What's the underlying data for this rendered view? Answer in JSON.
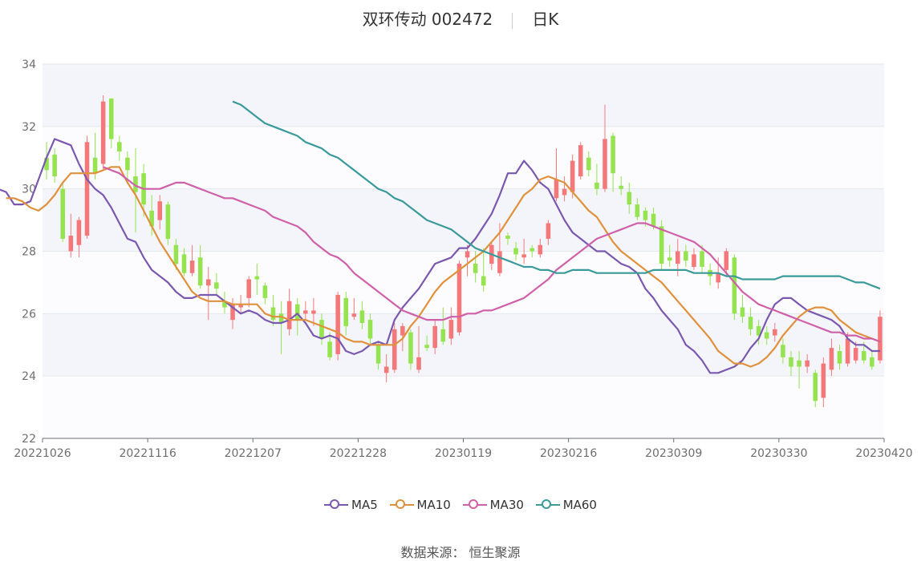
{
  "title": "双环传动 002472",
  "subtitle": "日K",
  "legend": [
    {
      "name": "MA5",
      "color": "#7b58b0"
    },
    {
      "name": "MA10",
      "color": "#e0913e"
    },
    {
      "name": "MA30",
      "color": "#d060a8"
    },
    {
      "name": "MA60",
      "color": "#3a9a9a"
    }
  ],
  "source_label": "数据来源： 恒生聚源",
  "chart_data": {
    "type": "candlestick",
    "title": "双环传动 002472 日K",
    "ylim": [
      22,
      34
    ],
    "yticks": [
      22,
      24,
      26,
      28,
      30,
      32,
      34
    ],
    "xticks": [
      "20221026",
      "20221116",
      "20221207",
      "20221228",
      "20230119",
      "20230216",
      "20230309",
      "20230330",
      "20230420"
    ],
    "up_color": "#f4787a",
    "down_color": "#94e34f",
    "series": [
      {
        "name": "MA5",
        "values": [
          29.6,
          30.0,
          30.0,
          29.9,
          29.5,
          29.5,
          29.6,
          30.3,
          31.0,
          31.6,
          31.5,
          31.4,
          30.8,
          30.3,
          30.0,
          29.8,
          29.4,
          28.9,
          28.4,
          28.3,
          27.8,
          27.4,
          27.2,
          27.0,
          26.7,
          26.5,
          26.5,
          26.6,
          26.6,
          26.6,
          26.4,
          26.2,
          26.0,
          26.1,
          26.0,
          25.8,
          25.7,
          25.7,
          25.8,
          26.0,
          25.7,
          25.3,
          25.2,
          25.3,
          25.2,
          24.8,
          24.7,
          24.8,
          25.0,
          25.1,
          25.0,
          25.8,
          26.2,
          26.5,
          26.8,
          27.2,
          27.6,
          27.7,
          27.8,
          28.1,
          28.1,
          28.4,
          28.8,
          29.2,
          29.8,
          30.5,
          30.5,
          30.9,
          30.6,
          30.2,
          30.0,
          29.5,
          29.0,
          28.6,
          28.4,
          28.2,
          28.0,
          28.0,
          27.8,
          27.6,
          27.5,
          27.3,
          26.8,
          26.5,
          26.1,
          25.8,
          25.5,
          25.0,
          24.8,
          24.5,
          24.1,
          24.1,
          24.2,
          24.3,
          24.5,
          24.9,
          25.2,
          25.8,
          26.3,
          26.5,
          26.5,
          26.3,
          26.1,
          26.0,
          25.9,
          25.8,
          25.6,
          25.2,
          25.0,
          25.0,
          24.8,
          24.8
        ]
      },
      {
        "name": "MA10",
        "values": [
          29.7,
          29.7,
          29.6,
          29.4,
          29.3,
          29.5,
          29.8,
          30.2,
          30.5,
          30.5,
          30.5,
          30.5,
          30.6,
          30.7,
          30.7,
          30.2,
          29.8,
          29.3,
          28.8,
          28.3,
          27.9,
          27.5,
          27.1,
          26.7,
          26.5,
          26.4,
          26.4,
          26.4,
          26.3,
          26.3,
          26.3,
          26.3,
          26.0,
          25.9,
          25.9,
          25.8,
          25.8,
          25.8,
          25.7,
          25.6,
          25.5,
          25.4,
          25.2,
          25.1,
          25.1,
          25.0,
          25.0,
          25.0,
          25.0,
          25.2,
          25.6,
          25.9,
          26.3,
          26.7,
          27.0,
          27.2,
          27.4,
          27.6,
          27.8,
          28.0,
          28.3,
          28.6,
          29.0,
          29.4,
          29.8,
          30.0,
          30.3,
          30.4,
          30.3,
          30.2,
          29.9,
          29.6,
          29.3,
          29.1,
          28.7,
          28.3,
          28.0,
          27.8,
          27.6,
          27.4,
          27.2,
          27.0,
          26.7,
          26.4,
          26.1,
          25.8,
          25.5,
          25.2,
          24.8,
          24.6,
          24.4,
          24.4,
          24.3,
          24.4,
          24.6,
          24.9,
          25.3,
          25.6,
          25.9,
          26.1,
          26.2,
          26.2,
          26.1,
          25.8,
          25.6,
          25.4,
          25.3,
          25.2,
          25.1
        ]
      },
      {
        "name": "MA30",
        "values": [
          30.7,
          30.6,
          30.5,
          30.3,
          30.1,
          30.0,
          30.0,
          30.0,
          30.1,
          30.2,
          30.2,
          30.1,
          30.0,
          29.9,
          29.8,
          29.7,
          29.7,
          29.6,
          29.5,
          29.4,
          29.3,
          29.1,
          29.0,
          28.9,
          28.8,
          28.6,
          28.3,
          28.1,
          27.9,
          27.8,
          27.6,
          27.3,
          27.1,
          26.9,
          26.7,
          26.5,
          26.3,
          26.1,
          26.0,
          25.9,
          25.8,
          25.8,
          25.8,
          25.9,
          25.9,
          26.0,
          26.0,
          26.1,
          26.1,
          26.2,
          26.3,
          26.4,
          26.5,
          26.7,
          26.9,
          27.1,
          27.4,
          27.6,
          27.8,
          28.0,
          28.2,
          28.4,
          28.5,
          28.6,
          28.7,
          28.8,
          28.9,
          28.9,
          28.8,
          28.7,
          28.6,
          28.5,
          28.4,
          28.3,
          28.1,
          27.9,
          27.6,
          27.3,
          27.0,
          26.7,
          26.5,
          26.3,
          26.2,
          26.1,
          26.0,
          25.9,
          25.8,
          25.7,
          25.6,
          25.5,
          25.4,
          25.4,
          25.3,
          25.3,
          25.2,
          25.2,
          25.1
        ]
      },
      {
        "name": "MA60",
        "values": [
          32.8,
          32.7,
          32.5,
          32.3,
          32.1,
          32.0,
          31.9,
          31.8,
          31.7,
          31.5,
          31.4,
          31.3,
          31.1,
          31.0,
          30.8,
          30.6,
          30.4,
          30.2,
          30.0,
          29.9,
          29.7,
          29.6,
          29.4,
          29.2,
          29.0,
          28.9,
          28.8,
          28.7,
          28.5,
          28.3,
          28.1,
          28.0,
          27.9,
          27.8,
          27.7,
          27.6,
          27.5,
          27.5,
          27.4,
          27.4,
          27.3,
          27.3,
          27.4,
          27.4,
          27.4,
          27.3,
          27.3,
          27.3,
          27.3,
          27.3,
          27.3,
          27.3,
          27.4,
          27.4,
          27.4,
          27.4,
          27.4,
          27.3,
          27.3,
          27.3,
          27.3,
          27.2,
          27.2,
          27.1,
          27.1,
          27.1,
          27.1,
          27.1,
          27.2,
          27.2,
          27.2,
          27.2,
          27.2,
          27.2,
          27.2,
          27.2,
          27.1,
          27.0,
          27.0,
          26.9,
          26.8
        ]
      }
    ],
    "candles": [
      {
        "o": 31.0,
        "c": 30.6,
        "h": 31.5,
        "l": 30.3
      },
      {
        "o": 31.1,
        "c": 30.4,
        "h": 31.3,
        "l": 30.2
      },
      {
        "o": 30.0,
        "c": 28.4,
        "h": 30.2,
        "l": 28.3
      },
      {
        "o": 28.0,
        "c": 28.5,
        "h": 29.2,
        "l": 27.8
      },
      {
        "o": 28.2,
        "c": 29.0,
        "h": 29.1,
        "l": 27.8
      },
      {
        "o": 28.5,
        "c": 31.5,
        "h": 31.7,
        "l": 28.4
      },
      {
        "o": 31.0,
        "c": 30.5,
        "h": 31.8,
        "l": 30.3
      },
      {
        "o": 30.8,
        "c": 32.8,
        "h": 33.0,
        "l": 30.6
      },
      {
        "o": 32.9,
        "c": 31.6,
        "h": 32.9,
        "l": 31.3
      },
      {
        "o": 31.5,
        "c": 31.2,
        "h": 31.7,
        "l": 30.9
      },
      {
        "o": 31.0,
        "c": 30.6,
        "h": 31.2,
        "l": 30.2
      },
      {
        "o": 30.4,
        "c": 29.9,
        "h": 31.3,
        "l": 28.6
      },
      {
        "o": 30.5,
        "c": 29.5,
        "h": 30.8,
        "l": 29.1
      },
      {
        "o": 29.3,
        "c": 28.8,
        "h": 29.8,
        "l": 28.5
      },
      {
        "o": 29.0,
        "c": 29.6,
        "h": 29.8,
        "l": 28.7
      },
      {
        "o": 29.5,
        "c": 28.4,
        "h": 29.6,
        "l": 28.2
      },
      {
        "o": 28.2,
        "c": 27.6,
        "h": 28.4,
        "l": 27.4
      },
      {
        "o": 27.9,
        "c": 27.3,
        "h": 28.1,
        "l": 27.2
      },
      {
        "o": 27.3,
        "c": 27.7,
        "h": 28.2,
        "l": 27.2
      },
      {
        "o": 27.8,
        "c": 26.9,
        "h": 28.2,
        "l": 26.8
      },
      {
        "o": 26.9,
        "c": 27.1,
        "h": 27.5,
        "l": 25.8
      },
      {
        "o": 27.0,
        "c": 26.8,
        "h": 27.3,
        "l": 26.6
      },
      {
        "o": 26.4,
        "c": 26.2,
        "h": 26.7,
        "l": 26.0
      },
      {
        "o": 25.8,
        "c": 26.3,
        "h": 26.5,
        "l": 25.5
      },
      {
        "o": 26.2,
        "c": 26.3,
        "h": 26.6,
        "l": 26.0
      },
      {
        "o": 26.5,
        "c": 27.1,
        "h": 27.2,
        "l": 26.2
      },
      {
        "o": 27.2,
        "c": 27.1,
        "h": 27.6,
        "l": 26.6
      },
      {
        "o": 26.9,
        "c": 26.5,
        "h": 27.0,
        "l": 26.3
      },
      {
        "o": 26.2,
        "c": 25.8,
        "h": 26.6,
        "l": 25.6
      },
      {
        "o": 26.0,
        "c": 25.7,
        "h": 26.4,
        "l": 24.7
      },
      {
        "o": 25.5,
        "c": 26.4,
        "h": 26.8,
        "l": 25.3
      },
      {
        "o": 26.3,
        "c": 25.8,
        "h": 26.5,
        "l": 25.3
      },
      {
        "o": 26.0,
        "c": 26.1,
        "h": 26.4,
        "l": 25.8
      },
      {
        "o": 26.0,
        "c": 26.1,
        "h": 26.5,
        "l": 25.6
      },
      {
        "o": 25.8,
        "c": 25.2,
        "h": 26.0,
        "l": 25.0
      },
      {
        "o": 25.1,
        "c": 24.6,
        "h": 25.4,
        "l": 24.5
      },
      {
        "o": 24.7,
        "c": 26.6,
        "h": 26.7,
        "l": 24.5
      },
      {
        "o": 26.5,
        "c": 25.6,
        "h": 26.7,
        "l": 25.3
      },
      {
        "o": 25.9,
        "c": 26.0,
        "h": 26.5,
        "l": 25.8
      },
      {
        "o": 26.1,
        "c": 25.7,
        "h": 26.4,
        "l": 25.5
      },
      {
        "o": 25.8,
        "c": 25.2,
        "h": 26.0,
        "l": 25.0
      },
      {
        "o": 25.0,
        "c": 24.4,
        "h": 25.1,
        "l": 24.2
      },
      {
        "o": 24.1,
        "c": 24.3,
        "h": 24.7,
        "l": 23.8
      },
      {
        "o": 24.2,
        "c": 25.5,
        "h": 25.7,
        "l": 24.1
      },
      {
        "o": 25.3,
        "c": 25.6,
        "h": 25.7,
        "l": 24.8
      },
      {
        "o": 25.4,
        "c": 24.4,
        "h": 25.5,
        "l": 24.2
      },
      {
        "o": 24.2,
        "c": 24.6,
        "h": 25.6,
        "l": 24.1
      },
      {
        "o": 25.0,
        "c": 24.9,
        "h": 25.3,
        "l": 24.8
      },
      {
        "o": 24.9,
        "c": 25.6,
        "h": 25.8,
        "l": 24.7
      },
      {
        "o": 25.5,
        "c": 25.1,
        "h": 26.2,
        "l": 25.0
      },
      {
        "o": 25.2,
        "c": 25.8,
        "h": 26.2,
        "l": 25.0
      },
      {
        "o": 25.4,
        "c": 27.6,
        "h": 27.7,
        "l": 25.3
      },
      {
        "o": 27.8,
        "c": 28.0,
        "h": 28.2,
        "l": 27.2
      },
      {
        "o": 27.6,
        "c": 27.3,
        "h": 28.0,
        "l": 27.0
      },
      {
        "o": 27.2,
        "c": 26.9,
        "h": 28.1,
        "l": 26.7
      },
      {
        "o": 27.6,
        "c": 28.2,
        "h": 28.3,
        "l": 27.4
      },
      {
        "o": 27.3,
        "c": 28.0,
        "h": 28.9,
        "l": 27.2
      },
      {
        "o": 28.5,
        "c": 28.4,
        "h": 28.6,
        "l": 28.2
      },
      {
        "o": 28.1,
        "c": 27.9,
        "h": 28.3,
        "l": 27.7
      },
      {
        "o": 27.8,
        "c": 27.9,
        "h": 28.4,
        "l": 27.6
      },
      {
        "o": 28.1,
        "c": 28.0,
        "h": 28.2,
        "l": 27.8
      },
      {
        "o": 27.9,
        "c": 28.2,
        "h": 28.4,
        "l": 27.8
      },
      {
        "o": 28.4,
        "c": 28.9,
        "h": 29.0,
        "l": 28.2
      },
      {
        "o": 29.7,
        "c": 30.3,
        "h": 31.3,
        "l": 29.6
      },
      {
        "o": 29.8,
        "c": 30.0,
        "h": 30.4,
        "l": 29.6
      },
      {
        "o": 29.9,
        "c": 30.9,
        "h": 31.1,
        "l": 29.7
      },
      {
        "o": 30.4,
        "c": 31.4,
        "h": 31.5,
        "l": 30.3
      },
      {
        "o": 31.0,
        "c": 30.6,
        "h": 31.2,
        "l": 30.4
      },
      {
        "o": 30.2,
        "c": 30.0,
        "h": 30.8,
        "l": 29.8
      },
      {
        "o": 30.0,
        "c": 31.6,
        "h": 32.7,
        "l": 29.9
      },
      {
        "o": 31.7,
        "c": 30.5,
        "h": 31.8,
        "l": 29.9
      },
      {
        "o": 30.1,
        "c": 30.0,
        "h": 30.4,
        "l": 29.8
      },
      {
        "o": 29.9,
        "c": 29.5,
        "h": 30.2,
        "l": 29.2
      },
      {
        "o": 29.5,
        "c": 29.1,
        "h": 29.7,
        "l": 29.0
      },
      {
        "o": 29.3,
        "c": 29.0,
        "h": 29.4,
        "l": 28.8
      },
      {
        "o": 29.2,
        "c": 28.8,
        "h": 29.4,
        "l": 28.7
      },
      {
        "o": 28.8,
        "c": 27.6,
        "h": 29.0,
        "l": 27.4
      },
      {
        "o": 27.8,
        "c": 27.7,
        "h": 28.2,
        "l": 27.5
      },
      {
        "o": 27.6,
        "c": 28.0,
        "h": 28.4,
        "l": 27.2
      },
      {
        "o": 28.0,
        "c": 27.7,
        "h": 28.2,
        "l": 27.5
      },
      {
        "o": 27.5,
        "c": 27.9,
        "h": 28.1,
        "l": 27.4
      },
      {
        "o": 28.0,
        "c": 27.5,
        "h": 28.2,
        "l": 27.3
      },
      {
        "o": 27.4,
        "c": 27.2,
        "h": 27.6,
        "l": 26.9
      },
      {
        "o": 27.0,
        "c": 27.3,
        "h": 27.8,
        "l": 26.8
      },
      {
        "o": 27.4,
        "c": 28.0,
        "h": 28.1,
        "l": 27.2
      },
      {
        "o": 27.8,
        "c": 26.0,
        "h": 27.9,
        "l": 25.8
      },
      {
        "o": 26.2,
        "c": 25.9,
        "h": 26.6,
        "l": 25.7
      },
      {
        "o": 25.9,
        "c": 25.5,
        "h": 26.2,
        "l": 25.3
      },
      {
        "o": 25.6,
        "c": 25.3,
        "h": 25.8,
        "l": 25.0
      },
      {
        "o": 25.4,
        "c": 25.2,
        "h": 25.6,
        "l": 25.0
      },
      {
        "o": 25.3,
        "c": 25.5,
        "h": 25.7,
        "l": 25.1
      },
      {
        "o": 25.0,
        "c": 24.6,
        "h": 25.2,
        "l": 24.4
      },
      {
        "o": 24.6,
        "c": 24.3,
        "h": 24.8,
        "l": 24.0
      },
      {
        "o": 24.5,
        "c": 24.3,
        "h": 24.8,
        "l": 23.6
      },
      {
        "o": 24.3,
        "c": 24.5,
        "h": 24.7,
        "l": 24.1
      },
      {
        "o": 24.1,
        "c": 23.2,
        "h": 24.2,
        "l": 23.0
      },
      {
        "o": 23.3,
        "c": 24.4,
        "h": 24.6,
        "l": 23.0
      },
      {
        "o": 24.2,
        "c": 24.9,
        "h": 25.2,
        "l": 24.0
      },
      {
        "o": 24.8,
        "c": 24.4,
        "h": 25.0,
        "l": 24.2
      },
      {
        "o": 24.4,
        "c": 25.2,
        "h": 25.4,
        "l": 24.3
      },
      {
        "o": 24.5,
        "c": 24.9,
        "h": 25.1,
        "l": 24.4
      },
      {
        "o": 24.8,
        "c": 24.5,
        "h": 25.1,
        "l": 24.4
      },
      {
        "o": 24.6,
        "c": 24.3,
        "h": 24.8,
        "l": 24.2
      },
      {
        "o": 24.5,
        "c": 25.9,
        "h": 26.1,
        "l": 24.4
      }
    ]
  }
}
